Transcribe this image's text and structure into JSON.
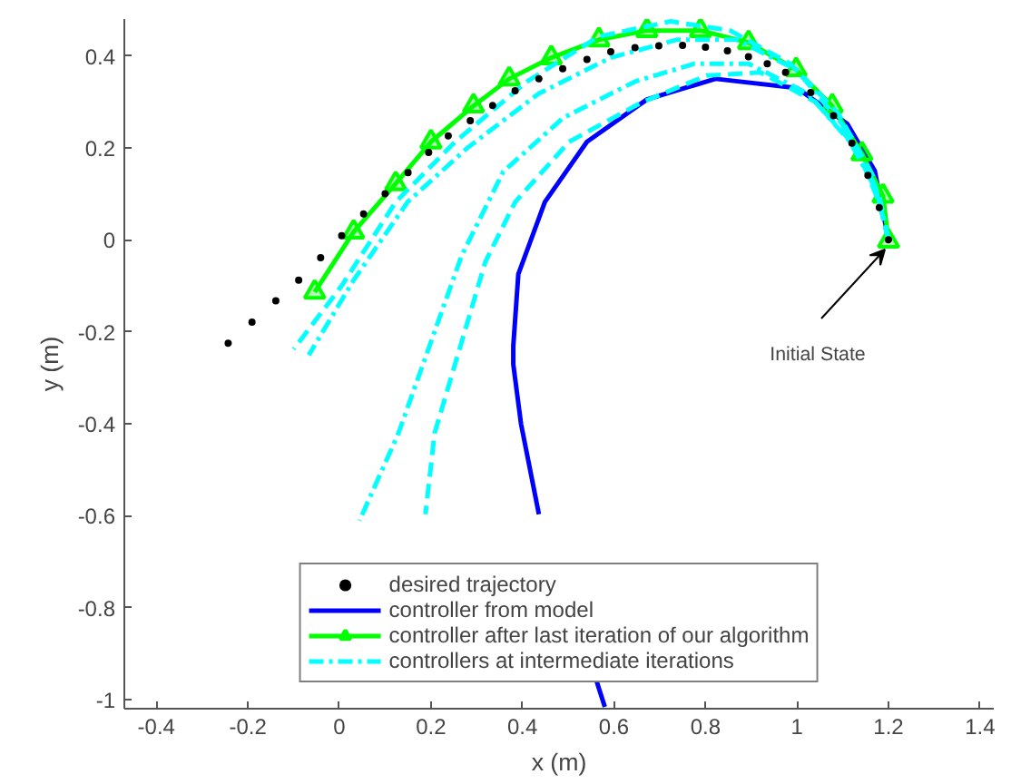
{
  "chart_data": {
    "type": "line",
    "xlabel": "x (m)",
    "ylabel": "y (m)",
    "xlim": [
      -0.47,
      1.43
    ],
    "ylim": [
      -1.02,
      0.48
    ],
    "xticks": [
      -0.4,
      -0.2,
      0,
      0.2,
      0.4,
      0.6,
      0.8,
      1,
      1.2,
      1.4
    ],
    "yticks": [
      -1,
      -0.8,
      -0.6,
      -0.4,
      -0.2,
      0,
      0.2,
      0.4
    ],
    "grid": false,
    "legend": "bottom",
    "annotations": [
      "Initial State"
    ],
    "series": [
      {
        "name": "desired trajectory",
        "type": "scatter",
        "marker": "circle",
        "color": "#000000",
        "x": [
          -0.243,
          -0.191,
          -0.139,
          -0.089,
          -0.041,
          0.005,
          0.053,
          0.1,
          0.15,
          0.195,
          0.238,
          0.286,
          0.335,
          0.384,
          0.436,
          0.488,
          0.541,
          0.593,
          0.646,
          0.698,
          0.75,
          0.8,
          0.848,
          0.894,
          0.935,
          0.975,
          1.03,
          1.08,
          1.12,
          1.155,
          1.18,
          1.2
        ],
        "values": [
          -0.225,
          -0.179,
          -0.133,
          -0.088,
          -0.039,
          0.009,
          0.056,
          0.1,
          0.146,
          0.19,
          0.226,
          0.259,
          0.292,
          0.324,
          0.35,
          0.372,
          0.392,
          0.409,
          0.418,
          0.422,
          0.423,
          0.419,
          0.411,
          0.398,
          0.383,
          0.364,
          0.32,
          0.27,
          0.21,
          0.14,
          0.07,
          0
        ]
      },
      {
        "name": "controller from model",
        "marker": "none",
        "line_style": "solid",
        "color": "#0000ff",
        "x": [
          1.2,
          1.17,
          1.11,
          1.0,
          0.822,
          0.672,
          0.541,
          0.449,
          0.391,
          0.38,
          0.38,
          0.397,
          0.436,
          0.502,
          0.562,
          0.58
        ],
        "values": [
          0,
          0.15,
          0.252,
          0.33,
          0.35,
          0.305,
          0.213,
          0.082,
          -0.075,
          -0.231,
          -0.271,
          -0.401,
          -0.597,
          null,
          -0.96,
          -1.016
        ]
      },
      {
        "name": "controller after last iteration of our algorithm",
        "marker": "triangle",
        "line_style": "solid",
        "color": "#00ff00",
        "x": [
          1.2,
          1.188,
          1.142,
          1.077,
          0.998,
          0.894,
          0.789,
          0.672,
          0.567,
          0.463,
          0.371,
          0.293,
          0.2,
          0.123,
          0.031,
          -0.054
        ],
        "values": [
          -0.003,
          0.095,
          0.187,
          0.291,
          0.37,
          0.429,
          0.455,
          0.455,
          0.435,
          0.396,
          0.35,
          0.291,
          0.213,
          0.122,
          0.017,
          -0.114
        ]
      },
      {
        "name": "controllers at intermediate iterations",
        "marker": "none",
        "line_style": "dashdot",
        "color": "#00ffff",
        "x": [
          1.2,
          1.17,
          1.1,
          0.998,
          0.868,
          0.737,
          0.593,
          0.436,
          0.28,
          0.149,
          0.031,
          -0.067
        ],
        "values": [
          0,
          0.12,
          0.25,
          0.37,
          0.435,
          0.435,
          0.396,
          0.318,
          0.2,
          0.082,
          -0.088,
          -0.251
        ]
      },
      {
        "marker": "none",
        "line_style": "dashed",
        "color": "#00ffff",
        "x": [
          1.2,
          1.165,
          1.09,
          0.985,
          0.854,
          0.724,
          0.567,
          0.41,
          0.253,
          0.123,
          0.005,
          -0.1
        ],
        "values": [
          0,
          0.14,
          0.275,
          0.383,
          0.455,
          0.475,
          0.442,
          0.344,
          0.213,
          0.082,
          -0.1,
          -0.238
        ]
      },
      {
        "marker": "none",
        "line_style": "dashdot",
        "color": "#00ffff",
        "x": [
          1.2,
          1.18,
          1.116,
          1.024,
          0.894,
          0.776,
          0.646,
          0.489,
          0.358,
          0.267,
          0.129,
          0.044
        ],
        "values": [
          0,
          0.095,
          0.213,
          0.318,
          0.383,
          0.383,
          0.344,
          0.265,
          0.148,
          -0.035,
          -0.421,
          -0.611
        ]
      },
      {
        "marker": "none",
        "line_style": "dashed",
        "color": "#00ffff",
        "x": [
          1.2,
          1.18,
          1.13,
          1.04,
          0.92,
          0.802,
          0.659,
          0.502,
          0.384,
          0.319,
          0.208,
          0.188
        ],
        "values": [
          0,
          0.08,
          0.2,
          0.3,
          0.364,
          0.357,
          0.298,
          0.213,
          0.082,
          -0.048,
          -0.421,
          -0.597
        ]
      }
    ]
  }
}
